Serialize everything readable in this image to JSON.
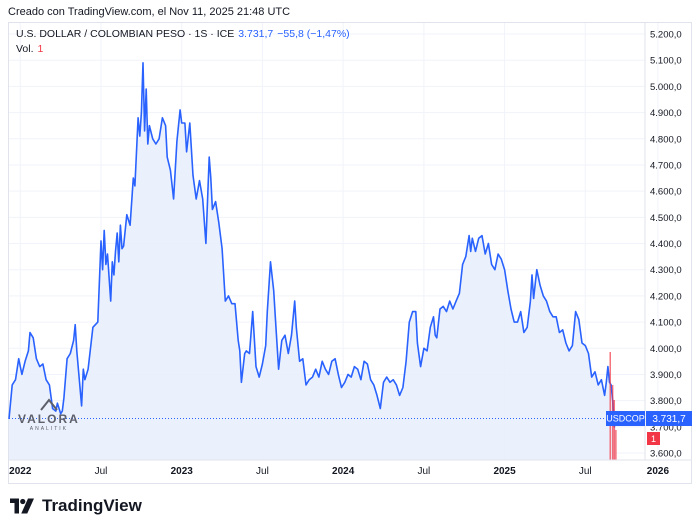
{
  "header": {
    "created_text": "Creado con TradingView.com, el Nov 11, 2025 21:48 UTC"
  },
  "legend": {
    "symbol": "U.S. DOLLAR / COLOMBIAN PESO · 1S · ICE",
    "price": "3.731,7",
    "change": "−55,8 (−1,47%)",
    "volume_label": "Vol.",
    "volume_value": "1"
  },
  "watermark": {
    "name": "VALORA",
    "sub": "ANALITIK"
  },
  "footer": {
    "brand": "TradingView"
  },
  "colors": {
    "line": "#2962ff",
    "fill": "#e8eefc",
    "down": "#f23645",
    "grid": "#f0f3fa"
  },
  "chart_data": {
    "type": "area",
    "ylim": [
      3600,
      5200
    ],
    "xlim": [
      2021.93,
      2025.87
    ],
    "y_tick_values": [
      3600,
      3700,
      3800,
      3900,
      4000,
      4100,
      4200,
      4300,
      4400,
      4500,
      4600,
      4700,
      4800,
      4900,
      5000,
      5100,
      5200
    ],
    "y_tick_labels": [
      "3.600,0",
      "3.700,0",
      "3.800,0",
      "3.900,0",
      "4.000,0",
      "4.100,0",
      "4.200,0",
      "4.300,0",
      "4.400,0",
      "4.500,0",
      "4.600,0",
      "4.700,0",
      "4.800,0",
      "4.900,0",
      "5.000,0",
      "5.100,0",
      "5.200,0"
    ],
    "x_ticks": [
      {
        "x": 2022.0,
        "label": "2022",
        "bold": true
      },
      {
        "x": 2022.5,
        "label": "Jul",
        "bold": false
      },
      {
        "x": 2023.0,
        "label": "2023",
        "bold": true
      },
      {
        "x": 2023.5,
        "label": "Jul",
        "bold": false
      },
      {
        "x": 2024.0,
        "label": "2024",
        "bold": true
      },
      {
        "x": 2024.5,
        "label": "Jul",
        "bold": false
      },
      {
        "x": 2025.0,
        "label": "2025",
        "bold": true
      },
      {
        "x": 2025.5,
        "label": "Jul",
        "bold": false
      },
      {
        "x": 2025.95,
        "label": "2026",
        "bold": true
      }
    ],
    "last_price": 3731.7,
    "price_tag_symbol": "USDCOP",
    "price_tag_value": "3.731,7",
    "volume_tag": "1",
    "series": [
      {
        "values": [
          [
            2021.93,
            3730
          ],
          [
            2021.95,
            3860
          ],
          [
            2021.97,
            3880
          ],
          [
            2021.99,
            3960
          ],
          [
            2022.01,
            3900
          ],
          [
            2022.03,
            3950
          ],
          [
            2022.05,
            3990
          ],
          [
            2022.06,
            4060
          ],
          [
            2022.08,
            4040
          ],
          [
            2022.1,
            3960
          ],
          [
            2022.12,
            3930
          ],
          [
            2022.14,
            3940
          ],
          [
            2022.16,
            3880
          ],
          [
            2022.18,
            3860
          ],
          [
            2022.2,
            3770
          ],
          [
            2022.22,
            3760
          ],
          [
            2022.23,
            3790
          ],
          [
            2022.25,
            3750
          ],
          [
            2022.26,
            3760
          ],
          [
            2022.27,
            3810
          ],
          [
            2022.29,
            3960
          ],
          [
            2022.31,
            3980
          ],
          [
            2022.33,
            4030
          ],
          [
            2022.34,
            4090
          ],
          [
            2022.35,
            3990
          ],
          [
            2022.37,
            3850
          ],
          [
            2022.38,
            3780
          ],
          [
            2022.39,
            3920
          ],
          [
            2022.4,
            3880
          ],
          [
            2022.42,
            3920
          ],
          [
            2022.45,
            4080
          ],
          [
            2022.48,
            4100
          ],
          [
            2022.5,
            4410
          ],
          [
            2022.51,
            4300
          ],
          [
            2022.52,
            4450
          ],
          [
            2022.53,
            4320
          ],
          [
            2022.54,
            4360
          ],
          [
            2022.56,
            4180
          ],
          [
            2022.57,
            4330
          ],
          [
            2022.58,
            4280
          ],
          [
            2022.59,
            4370
          ],
          [
            2022.6,
            4440
          ],
          [
            2022.61,
            4330
          ],
          [
            2022.62,
            4470
          ],
          [
            2022.63,
            4380
          ],
          [
            2022.64,
            4390
          ],
          [
            2022.66,
            4510
          ],
          [
            2022.68,
            4470
          ],
          [
            2022.7,
            4650
          ],
          [
            2022.71,
            4620
          ],
          [
            2022.73,
            4880
          ],
          [
            2022.74,
            4810
          ],
          [
            2022.75,
            4900
          ],
          [
            2022.76,
            5090
          ],
          [
            2022.77,
            4830
          ],
          [
            2022.78,
            4990
          ],
          [
            2022.79,
            4780
          ],
          [
            2022.8,
            4850
          ],
          [
            2022.82,
            4800
          ],
          [
            2022.84,
            4780
          ],
          [
            2022.86,
            4800
          ],
          [
            2022.88,
            4880
          ],
          [
            2022.9,
            4850
          ],
          [
            2022.91,
            4730
          ],
          [
            2022.93,
            4680
          ],
          [
            2022.95,
            4570
          ],
          [
            2022.97,
            4790
          ],
          [
            2022.99,
            4910
          ],
          [
            2023.0,
            4860
          ],
          [
            2023.02,
            4860
          ],
          [
            2023.03,
            4750
          ],
          [
            2023.05,
            4860
          ],
          [
            2023.07,
            4660
          ],
          [
            2023.09,
            4570
          ],
          [
            2023.11,
            4640
          ],
          [
            2023.13,
            4570
          ],
          [
            2023.15,
            4400
          ],
          [
            2023.17,
            4730
          ],
          [
            2023.18,
            4650
          ],
          [
            2023.19,
            4530
          ],
          [
            2023.21,
            4560
          ],
          [
            2023.23,
            4480
          ],
          [
            2023.25,
            4380
          ],
          [
            2023.27,
            4180
          ],
          [
            2023.29,
            4200
          ],
          [
            2023.31,
            4170
          ],
          [
            2023.33,
            4170
          ],
          [
            2023.35,
            4030
          ],
          [
            2023.36,
            3990
          ],
          [
            2023.37,
            3870
          ],
          [
            2023.39,
            3980
          ],
          [
            2023.4,
            3990
          ],
          [
            2023.42,
            3980
          ],
          [
            2023.44,
            4140
          ],
          [
            2023.46,
            3930
          ],
          [
            2023.48,
            3890
          ],
          [
            2023.5,
            3940
          ],
          [
            2023.52,
            4010
          ],
          [
            2023.53,
            4140
          ],
          [
            2023.55,
            4330
          ],
          [
            2023.57,
            4220
          ],
          [
            2023.58,
            4120
          ],
          [
            2023.6,
            3920
          ],
          [
            2023.62,
            4030
          ],
          [
            2023.64,
            4050
          ],
          [
            2023.66,
            3980
          ],
          [
            2023.68,
            4050
          ],
          [
            2023.7,
            4180
          ],
          [
            2023.71,
            4080
          ],
          [
            2023.73,
            3950
          ],
          [
            2023.75,
            3960
          ],
          [
            2023.77,
            3860
          ],
          [
            2023.79,
            3880
          ],
          [
            2023.81,
            3890
          ],
          [
            2023.83,
            3920
          ],
          [
            2023.85,
            3890
          ],
          [
            2023.87,
            3950
          ],
          [
            2023.89,
            3920
          ],
          [
            2023.91,
            3900
          ],
          [
            2023.93,
            3950
          ],
          [
            2023.95,
            3960
          ],
          [
            2023.97,
            3900
          ],
          [
            2023.99,
            3850
          ],
          [
            2024.01,
            3870
          ],
          [
            2024.03,
            3900
          ],
          [
            2024.05,
            3890
          ],
          [
            2024.07,
            3930
          ],
          [
            2024.09,
            3920
          ],
          [
            2024.11,
            3880
          ],
          [
            2024.13,
            3950
          ],
          [
            2024.15,
            3940
          ],
          [
            2024.17,
            3880
          ],
          [
            2024.19,
            3860
          ],
          [
            2024.21,
            3820
          ],
          [
            2024.23,
            3770
          ],
          [
            2024.25,
            3870
          ],
          [
            2024.27,
            3890
          ],
          [
            2024.29,
            3870
          ],
          [
            2024.31,
            3880
          ],
          [
            2024.33,
            3860
          ],
          [
            2024.35,
            3820
          ],
          [
            2024.37,
            3850
          ],
          [
            2024.39,
            3950
          ],
          [
            2024.41,
            4100
          ],
          [
            2024.43,
            4140
          ],
          [
            2024.45,
            4140
          ],
          [
            2024.46,
            4020
          ],
          [
            2024.48,
            3930
          ],
          [
            2024.5,
            4000
          ],
          [
            2024.52,
            3990
          ],
          [
            2024.54,
            4080
          ],
          [
            2024.56,
            4120
          ],
          [
            2024.57,
            4050
          ],
          [
            2024.58,
            4040
          ],
          [
            2024.6,
            4150
          ],
          [
            2024.62,
            4160
          ],
          [
            2024.64,
            4140
          ],
          [
            2024.66,
            4180
          ],
          [
            2024.68,
            4150
          ],
          [
            2024.7,
            4180
          ],
          [
            2024.72,
            4210
          ],
          [
            2024.74,
            4320
          ],
          [
            2024.76,
            4350
          ],
          [
            2024.78,
            4430
          ],
          [
            2024.79,
            4370
          ],
          [
            2024.8,
            4420
          ],
          [
            2024.82,
            4370
          ],
          [
            2024.84,
            4420
          ],
          [
            2024.86,
            4430
          ],
          [
            2024.88,
            4360
          ],
          [
            2024.9,
            4400
          ],
          [
            2024.92,
            4320
          ],
          [
            2024.94,
            4300
          ],
          [
            2024.96,
            4360
          ],
          [
            2024.98,
            4340
          ],
          [
            2025.0,
            4300
          ],
          [
            2025.02,
            4220
          ],
          [
            2025.04,
            4150
          ],
          [
            2025.06,
            4100
          ],
          [
            2025.08,
            4100
          ],
          [
            2025.1,
            4140
          ],
          [
            2025.12,
            4060
          ],
          [
            2025.14,
            4080
          ],
          [
            2025.16,
            4180
          ],
          [
            2025.17,
            4280
          ],
          [
            2025.18,
            4190
          ],
          [
            2025.2,
            4300
          ],
          [
            2025.22,
            4240
          ],
          [
            2025.24,
            4200
          ],
          [
            2025.26,
            4180
          ],
          [
            2025.28,
            4140
          ],
          [
            2025.3,
            4120
          ],
          [
            2025.32,
            4120
          ],
          [
            2025.34,
            4060
          ],
          [
            2025.36,
            4070
          ],
          [
            2025.38,
            4020
          ],
          [
            2025.4,
            3990
          ],
          [
            2025.42,
            4010
          ],
          [
            2025.44,
            4140
          ],
          [
            2025.46,
            4110
          ],
          [
            2025.48,
            4020
          ],
          [
            2025.5,
            4010
          ],
          [
            2025.52,
            3980
          ],
          [
            2025.54,
            3890
          ],
          [
            2025.56,
            3910
          ],
          [
            2025.58,
            3860
          ],
          [
            2025.6,
            3880
          ],
          [
            2025.62,
            3820
          ],
          [
            2025.63,
            3870
          ],
          [
            2025.64,
            3930
          ],
          [
            2025.65,
            3870
          ],
          [
            2025.66,
            3860
          ],
          [
            2025.67,
            3800
          ],
          [
            2025.68,
            3700
          ],
          [
            2025.69,
            3731.7
          ]
        ]
      }
    ]
  }
}
